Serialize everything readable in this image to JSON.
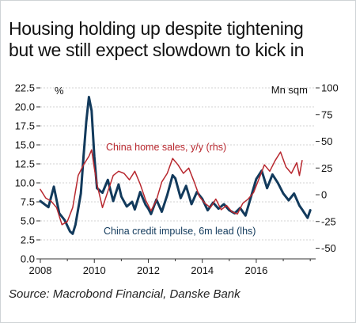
{
  "header": {
    "title_line1": "Housing holding up despite tightening",
    "title_line2": "but we still expect slowdown to kick in"
  },
  "footer": {
    "source": "Source: Macrobond Financial, Danske Bank"
  },
  "chart_data": {
    "type": "line",
    "title": "Housing holding up despite tightening but we still expect slowdown to kick in",
    "left_axis": {
      "unit": "%",
      "ylim": [
        0,
        22.5
      ],
      "ticks": [
        0.0,
        2.5,
        5.0,
        7.5,
        10.0,
        12.5,
        15.0,
        17.5,
        20.0,
        22.5
      ],
      "tick_labels": [
        "0.0",
        "2.5",
        "5.0",
        "7.5",
        "10.0",
        "12.5",
        "15.0",
        "17.5",
        "20.0",
        "22.5"
      ]
    },
    "right_axis": {
      "unit": "Mn sqm",
      "ylim": [
        -60,
        100
      ],
      "ticks": [
        -50,
        -25,
        0,
        25,
        50,
        75,
        100
      ],
      "tick_labels": [
        "-50",
        "-25",
        "0",
        "25",
        "50",
        "75",
        "100"
      ]
    },
    "x_axis": {
      "xlim": [
        2008,
        2018.2
      ],
      "ticks": [
        2008,
        2010,
        2012,
        2014,
        2016
      ],
      "tick_labels": [
        "2008",
        "2010",
        "2012",
        "2014",
        "2016"
      ]
    },
    "grid": true,
    "colors": {
      "credit_impulse": "#123a5c",
      "home_sales": "#b8282f",
      "grid": "#d2d2d2"
    },
    "annotations": {
      "home_sales": "China home sales, y/y (rhs)",
      "credit_impulse": "China credit impulse, 6m lead (lhs)"
    },
    "series": [
      {
        "name": "China credit impulse, 6m lead (lhs)",
        "axis": "left",
        "x": [
          2008.0,
          2008.3,
          2008.5,
          2008.7,
          2008.9,
          2009.1,
          2009.2,
          2009.3,
          2009.5,
          2009.6,
          2009.7,
          2009.8,
          2009.9,
          2010.0,
          2010.1,
          2010.3,
          2010.5,
          2010.7,
          2010.9,
          2011.0,
          2011.2,
          2011.4,
          2011.5,
          2011.7,
          2011.9,
          2012.0,
          2012.1,
          2012.3,
          2012.5,
          2012.7,
          2012.9,
          2013.0,
          2013.2,
          2013.4,
          2013.6,
          2013.8,
          2014.0,
          2014.2,
          2014.4,
          2014.6,
          2014.8,
          2015.0,
          2015.2,
          2015.4,
          2015.6,
          2015.8,
          2016.0,
          2016.2,
          2016.4,
          2016.6,
          2016.8,
          2017.0,
          2017.2,
          2017.4,
          2017.6,
          2017.7,
          2017.9,
          2018.0
        ],
        "values": [
          7.6,
          6.8,
          9.5,
          6.0,
          5.1,
          3.6,
          3.3,
          4.5,
          8.6,
          13.5,
          18.0,
          21.3,
          19.5,
          13.5,
          9.3,
          8.7,
          10.4,
          7.6,
          9.8,
          8.2,
          6.9,
          7.5,
          6.5,
          8.8,
          7.1,
          6.6,
          5.9,
          7.8,
          6.2,
          8.4,
          11.0,
          10.6,
          8.0,
          9.6,
          7.2,
          8.8,
          7.9,
          6.4,
          7.4,
          6.6,
          7.2,
          6.4,
          6.0,
          6.7,
          5.7,
          8.1,
          10.5,
          11.6,
          9.3,
          11.1,
          10.0,
          8.6,
          7.7,
          8.6,
          7.0,
          6.5,
          5.4,
          6.4
        ]
      },
      {
        "name": "China home sales, y/y (rhs)",
        "axis": "right",
        "x": [
          2008.0,
          2008.2,
          2008.4,
          2008.6,
          2008.8,
          2009.0,
          2009.2,
          2009.4,
          2009.6,
          2009.8,
          2009.9,
          2010.0,
          2010.1,
          2010.3,
          2010.5,
          2010.7,
          2010.9,
          2011.1,
          2011.3,
          2011.5,
          2011.7,
          2011.9,
          2012.1,
          2012.3,
          2012.5,
          2012.7,
          2012.9,
          2013.1,
          2013.3,
          2013.5,
          2013.7,
          2013.9,
          2014.1,
          2014.3,
          2014.5,
          2014.7,
          2014.9,
          2015.1,
          2015.3,
          2015.5,
          2015.7,
          2015.9,
          2016.1,
          2016.3,
          2016.5,
          2016.7,
          2016.9,
          2017.1,
          2017.3,
          2017.5,
          2017.6,
          2017.7
        ],
        "values": [
          5,
          -3,
          -6,
          -12,
          -28,
          -25,
          -12,
          18,
          28,
          36,
          42,
          25,
          10,
          -12,
          3,
          18,
          22,
          20,
          14,
          22,
          10,
          -5,
          -15,
          -5,
          12,
          20,
          34,
          28,
          20,
          25,
          12,
          -2,
          -8,
          -12,
          -4,
          -14,
          -10,
          -16,
          -18,
          -8,
          -4,
          2,
          15,
          28,
          22,
          32,
          40,
          26,
          20,
          30,
          18,
          32
        ]
      }
    ]
  }
}
